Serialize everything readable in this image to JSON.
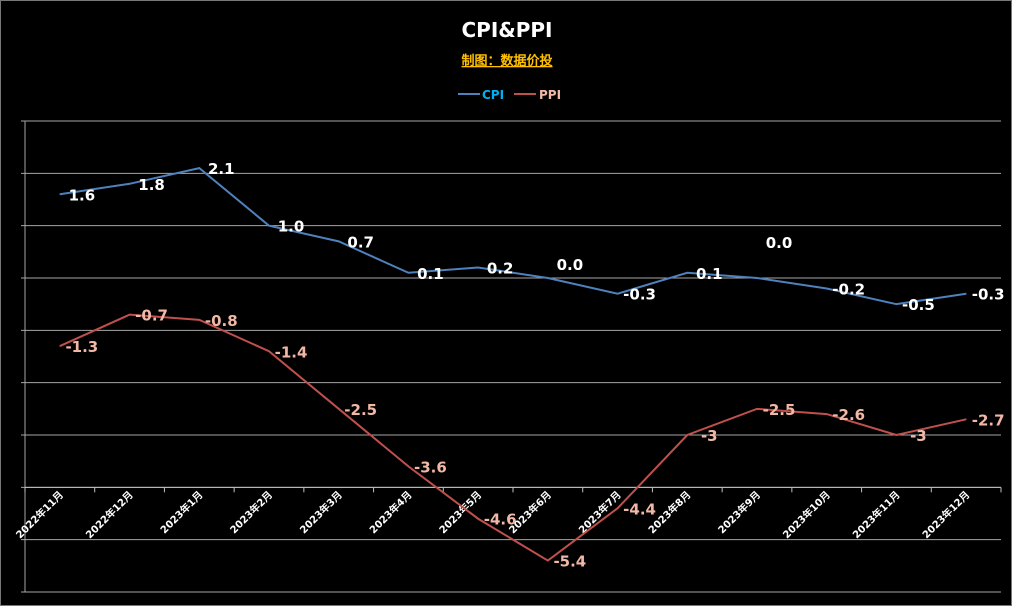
{
  "chart_data": {
    "type": "line",
    "title": "CPI&PPI",
    "subtitle": "制图：数据价投",
    "legend_position": "top",
    "categories": [
      "2022年11月",
      "2022年12月",
      "2023年1月",
      "2023年2月",
      "2023年3月",
      "2023年4月",
      "2023年5月",
      "2023年6月",
      "2023年7月",
      "2023年8月",
      "2023年9月",
      "2023年10月",
      "2023年11月",
      "2023年12月"
    ],
    "series": [
      {
        "name": "CPI",
        "color": "#4f81bd",
        "label_color": "#ffffff",
        "legend_color": "#00b0f0",
        "values": [
          1.6,
          1.8,
          2.1,
          1.0,
          0.7,
          0.1,
          0.2,
          0.0,
          -0.3,
          0.1,
          0.0,
          -0.2,
          -0.5,
          -0.3
        ],
        "labels": [
          "1.6",
          "1.8",
          "2.1",
          "1.0",
          "0.7",
          "0.1",
          "0.2",
          "0.0",
          "-0.3",
          "0.1",
          "0.0",
          "-0.2",
          "-0.5",
          "-0.3"
        ]
      },
      {
        "name": "PPI",
        "color": "#c0504d",
        "label_color": "#f2b8a6",
        "legend_color": "#f2b8a6",
        "values": [
          -1.3,
          -0.7,
          -0.8,
          -1.4,
          -2.5,
          -3.6,
          -4.6,
          -5.4,
          -4.4,
          -3,
          -2.5,
          -2.6,
          -3,
          -2.7
        ],
        "labels": [
          "-1.3",
          "-0.7",
          "-0.8",
          "-1.4",
          "-2.5",
          "-3.6",
          "-4.6",
          "-5.4",
          "-4.4",
          "-3",
          "-2.5",
          "-2.6",
          "-3",
          "-2.7"
        ]
      }
    ],
    "ylim": [
      -6,
      3
    ],
    "category_axis_crosses": -4,
    "grid": true,
    "colors": {
      "background": "#000000",
      "title": "#ffffff",
      "subtitle": "#ffc000",
      "grid": "#a6a6a6"
    }
  }
}
